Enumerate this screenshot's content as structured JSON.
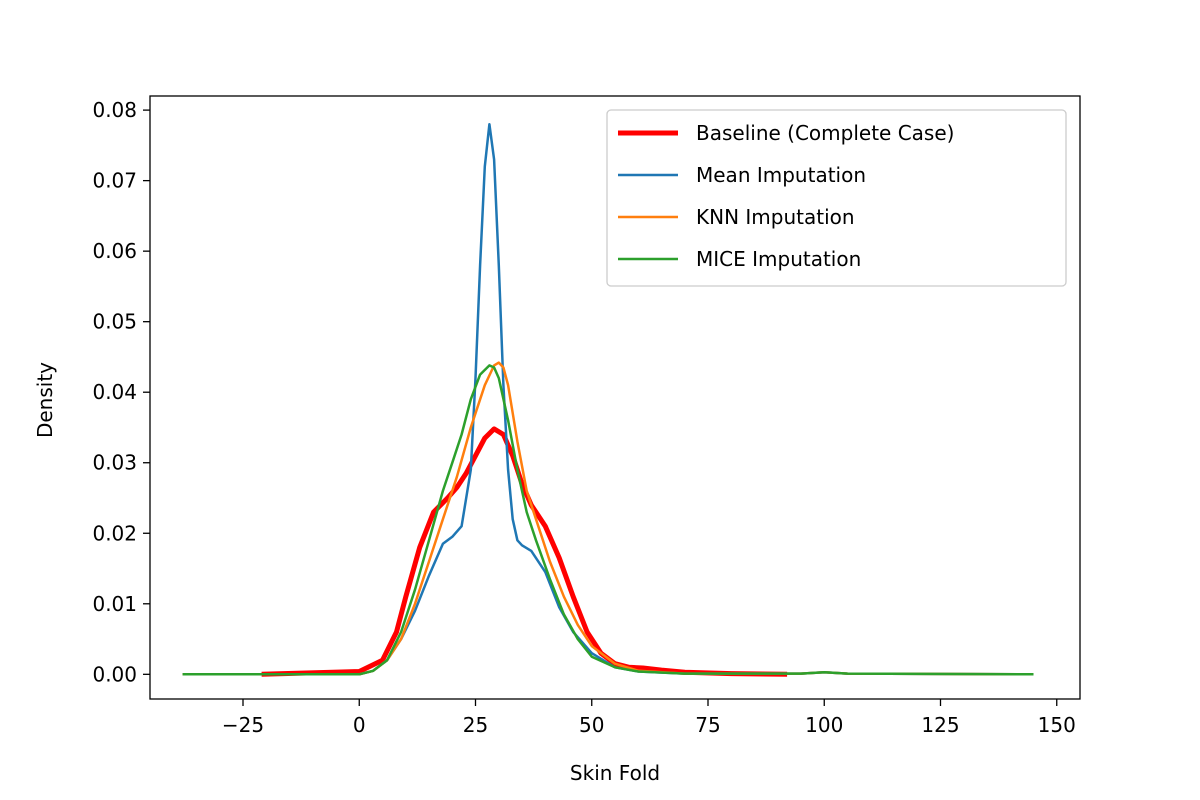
{
  "chart_data": {
    "type": "line",
    "xlabel": "Skin Fold",
    "ylabel": "Density",
    "xlim": [
      -45,
      155
    ],
    "ylim": [
      -0.0035,
      0.082
    ],
    "xticks": [
      -25,
      0,
      25,
      50,
      75,
      100,
      125,
      150
    ],
    "xtick_labels": [
      "−25",
      "0",
      "25",
      "50",
      "75",
      "100",
      "125",
      "150"
    ],
    "yticks": [
      0.0,
      0.01,
      0.02,
      0.03,
      0.04,
      0.05,
      0.06,
      0.07,
      0.08
    ],
    "ytick_labels": [
      "0.00",
      "0.01",
      "0.02",
      "0.03",
      "0.04",
      "0.05",
      "0.06",
      "0.07",
      "0.08"
    ],
    "grid": false,
    "legend_position": "top-right",
    "series": [
      {
        "name": "Baseline (Complete Case)",
        "color": "#ff0000",
        "width": 5,
        "x": [
          -21,
          0,
          5,
          8,
          10,
          13,
          16,
          19,
          21,
          23,
          25,
          27,
          29,
          31,
          33,
          35,
          37,
          40,
          43,
          46,
          49,
          52,
          55,
          58,
          61,
          65,
          70,
          80,
          92
        ],
        "y": [
          0.0,
          0.0004,
          0.002,
          0.006,
          0.011,
          0.018,
          0.023,
          0.025,
          0.0265,
          0.0285,
          0.031,
          0.0335,
          0.0348,
          0.034,
          0.031,
          0.027,
          0.024,
          0.021,
          0.0165,
          0.011,
          0.006,
          0.003,
          0.0015,
          0.001,
          0.0009,
          0.0006,
          0.0003,
          0.0001,
          0.0
        ]
      },
      {
        "name": "Mean Imputation",
        "color": "#1f77b4",
        "width": 2.5,
        "x": [
          -38,
          0,
          3,
          6,
          9,
          12,
          15,
          18,
          20,
          22,
          24,
          25,
          26,
          27,
          28,
          29,
          30,
          31,
          32,
          33,
          34,
          35,
          37,
          40,
          43,
          46,
          50,
          55,
          60,
          70,
          95,
          100,
          105,
          145
        ],
        "y": [
          0.0,
          0.0,
          0.0005,
          0.002,
          0.005,
          0.009,
          0.014,
          0.0185,
          0.0195,
          0.021,
          0.029,
          0.042,
          0.058,
          0.072,
          0.078,
          0.073,
          0.058,
          0.041,
          0.029,
          0.022,
          0.019,
          0.0183,
          0.0175,
          0.0145,
          0.0095,
          0.006,
          0.003,
          0.001,
          0.0004,
          0.0001,
          0.0001,
          0.0003,
          0.0001,
          0.0
        ]
      },
      {
        "name": "KNN Imputation",
        "color": "#ff7f0e",
        "width": 2.5,
        "x": [
          -38,
          0,
          3,
          6,
          9,
          12,
          15,
          18,
          21,
          24,
          27,
          29,
          30,
          31,
          32,
          34,
          36,
          38,
          41,
          44,
          47,
          50,
          55,
          60,
          70,
          95,
          100,
          105,
          145
        ],
        "y": [
          0.0,
          0.0,
          0.0005,
          0.002,
          0.005,
          0.01,
          0.016,
          0.022,
          0.028,
          0.035,
          0.041,
          0.0438,
          0.0442,
          0.0435,
          0.041,
          0.033,
          0.026,
          0.022,
          0.016,
          0.011,
          0.007,
          0.004,
          0.0015,
          0.0005,
          0.0001,
          0.0001,
          0.0003,
          0.0001,
          0.0
        ]
      },
      {
        "name": "MICE Imputation",
        "color": "#2ca02c",
        "width": 2.5,
        "x": [
          -38,
          0,
          3,
          6,
          9,
          12,
          15,
          18,
          20,
          22,
          24,
          26,
          28,
          29,
          30,
          32,
          34,
          36,
          38,
          41,
          44,
          47,
          50,
          55,
          60,
          70,
          95,
          100,
          105,
          145
        ],
        "y": [
          0.0,
          0.0,
          0.0005,
          0.002,
          0.006,
          0.012,
          0.019,
          0.026,
          0.03,
          0.034,
          0.039,
          0.0425,
          0.0438,
          0.0435,
          0.042,
          0.036,
          0.029,
          0.023,
          0.019,
          0.0135,
          0.0085,
          0.005,
          0.0025,
          0.001,
          0.0004,
          0.0001,
          0.0001,
          0.0003,
          0.0001,
          0.0
        ]
      }
    ]
  }
}
